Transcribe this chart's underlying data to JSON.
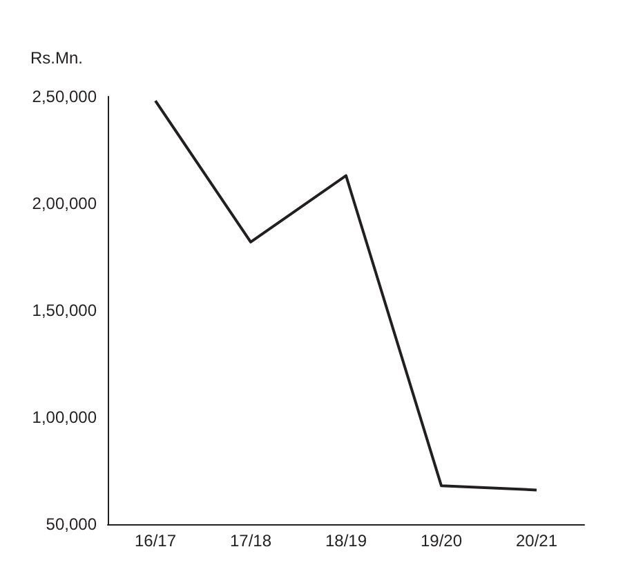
{
  "chart_data": {
    "type": "line",
    "ylabel": "Rs.Mn.",
    "categories": [
      "16/17",
      "17/18",
      "18/19",
      "19/20",
      "20/21"
    ],
    "series": [
      {
        "color": "#231f20",
        "values": [
          248000,
          182000,
          213000,
          68000,
          66000
        ]
      }
    ],
    "ylim": [
      50000,
      250000
    ],
    "yticks": [
      {
        "value": 50000,
        "label": "50,000"
      },
      {
        "value": 100000,
        "label": "1,00,000"
      },
      {
        "value": 150000,
        "label": "1,50,000"
      },
      {
        "value": 200000,
        "label": "2,00,000"
      },
      {
        "value": 250000,
        "label": "2,50,000"
      }
    ],
    "grid": false,
    "marker": "none",
    "line_style": "solid"
  }
}
